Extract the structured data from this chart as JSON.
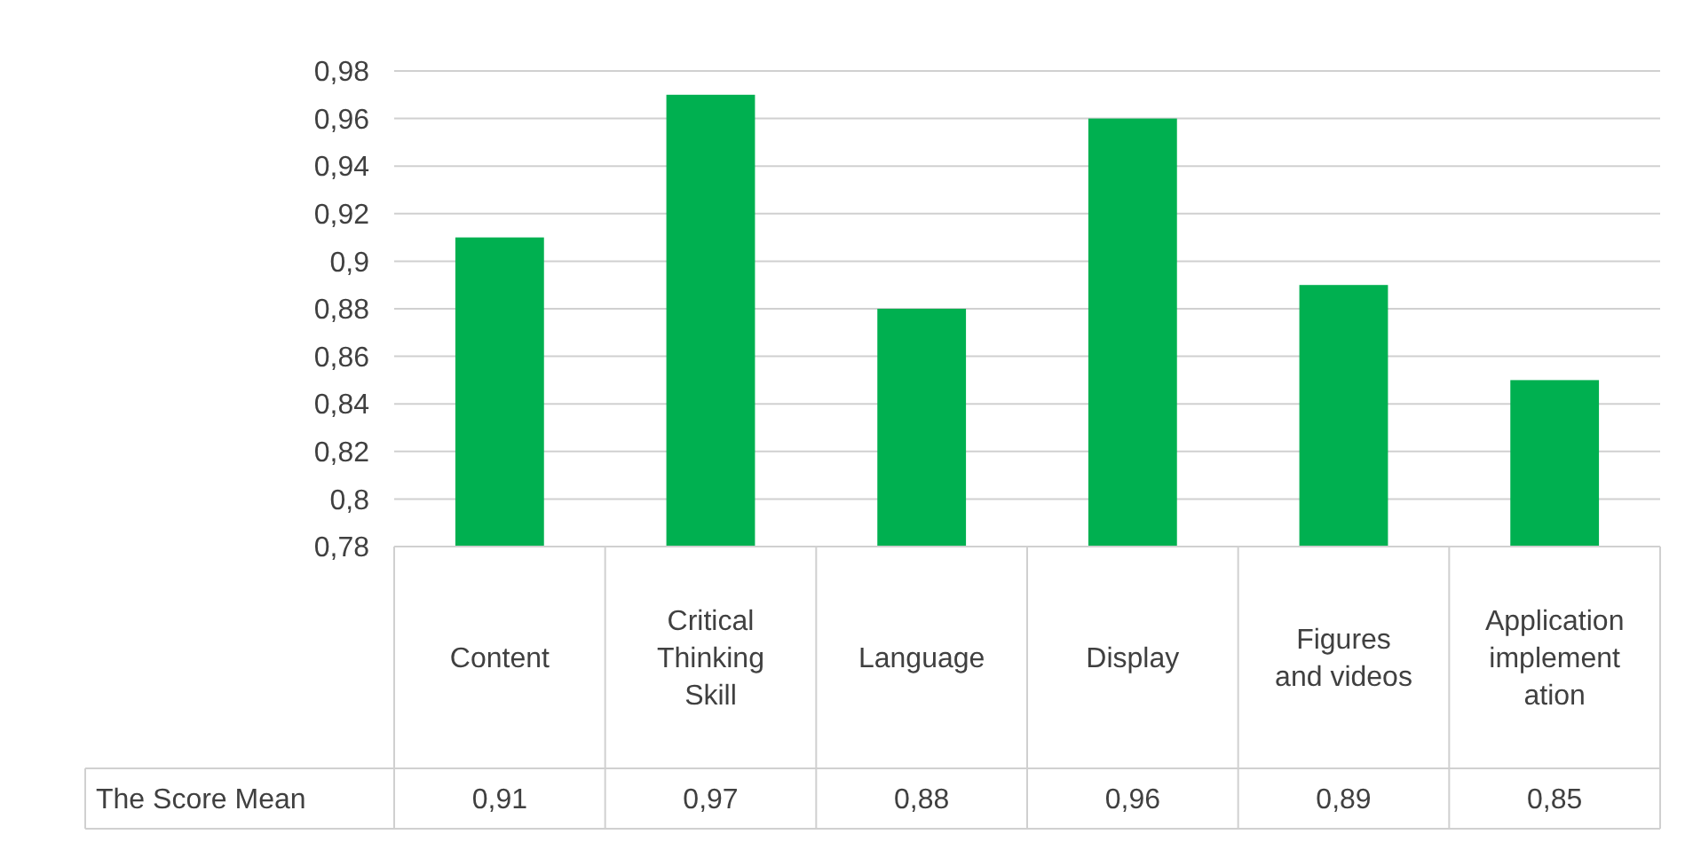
{
  "chart_data": {
    "type": "bar",
    "categories": [
      "Content",
      "Critical Thinking Skill",
      "Language",
      "Display",
      "Figures and videos",
      "Application implementation"
    ],
    "series": [
      {
        "name": "The Score Mean",
        "color": "#00b050",
        "values": [
          0.91,
          0.97,
          0.88,
          0.96,
          0.89,
          0.85
        ],
        "value_labels": [
          "0,91",
          "0,97",
          "0,88",
          "0,96",
          "0,89",
          "0,85"
        ]
      }
    ],
    "ylim": [
      0.78,
      0.98
    ],
    "yticks": [
      {
        "value": 0.78,
        "label": "0,78"
      },
      {
        "value": 0.8,
        "label": "0,8"
      },
      {
        "value": 0.82,
        "label": "0,82"
      },
      {
        "value": 0.84,
        "label": "0,84"
      },
      {
        "value": 0.86,
        "label": "0,86"
      },
      {
        "value": 0.88,
        "label": "0,88"
      },
      {
        "value": 0.9,
        "label": "0,9"
      },
      {
        "value": 0.92,
        "label": "0,92"
      },
      {
        "value": 0.94,
        "label": "0,94"
      },
      {
        "value": 0.96,
        "label": "0,96"
      },
      {
        "value": 0.98,
        "label": "0,98"
      }
    ],
    "grid": "y"
  }
}
